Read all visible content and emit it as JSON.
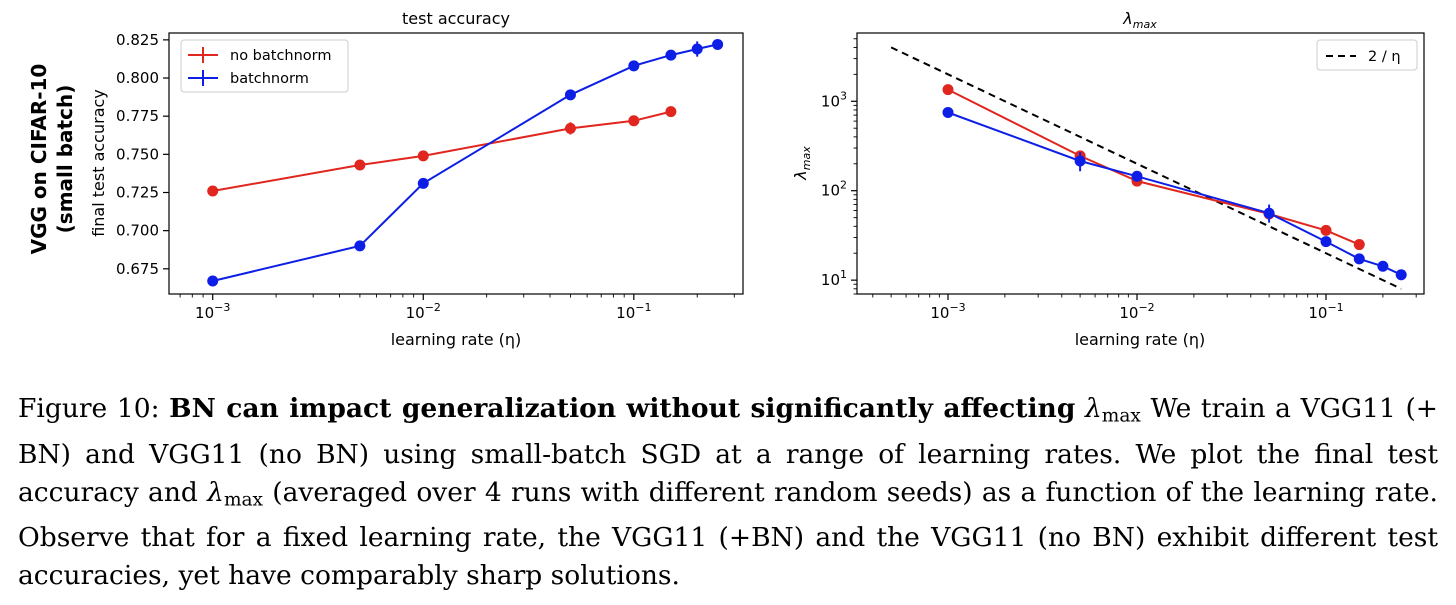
{
  "row_label": {
    "line1": "VGG on CIFAR-10",
    "line2": "(small batch)"
  },
  "chart_data": [
    {
      "type": "line",
      "title": "test accuracy",
      "xlabel": "learning rate (η)",
      "ylabel": "final test accuracy",
      "xscale": "log",
      "yscale": "linear",
      "xlim": [
        0.00062,
        0.33
      ],
      "ylim": [
        0.6585,
        0.8295
      ],
      "xticks": [
        {
          "value": 0.001,
          "base": "10",
          "exp": "−3"
        },
        {
          "value": 0.01,
          "base": "10",
          "exp": "−2"
        },
        {
          "value": 0.1,
          "base": "10",
          "exp": "−1"
        }
      ],
      "yticks": [
        {
          "value": 0.675,
          "label": "0.675"
        },
        {
          "value": 0.7,
          "label": "0.700"
        },
        {
          "value": 0.725,
          "label": "0.725"
        },
        {
          "value": 0.75,
          "label": "0.750"
        },
        {
          "value": 0.775,
          "label": "0.775"
        },
        {
          "value": 0.8,
          "label": "0.800"
        },
        {
          "value": 0.825,
          "label": "0.825"
        }
      ],
      "grid": false,
      "legend_position": "top-left",
      "series": [
        {
          "name": "no batchnorm",
          "color": "#e0261e",
          "x": [
            0.001,
            0.005,
            0.01,
            0.05,
            0.1,
            0.15
          ],
          "y": [
            0.726,
            0.743,
            0.749,
            0.767,
            0.772,
            0.778
          ],
          "err": [
            0.0015,
            0.002,
            0.0015,
            0.004,
            0.003,
            0.0015
          ]
        },
        {
          "name": "batchnorm",
          "color": "#0d1fe6",
          "x": [
            0.001,
            0.005,
            0.01,
            0.05,
            0.1,
            0.15,
            0.2,
            0.25
          ],
          "y": [
            0.667,
            0.69,
            0.731,
            0.789,
            0.808,
            0.815,
            0.819,
            0.822
          ],
          "err": [
            0.003,
            0.003,
            0.0015,
            0.0015,
            0.0015,
            0.002,
            0.005,
            0.0015
          ]
        }
      ]
    },
    {
      "type": "line",
      "title": "λmax",
      "xlabel": "learning rate (η)",
      "ylabel": "λmax",
      "xscale": "log",
      "yscale": "log",
      "xlim": [
        0.00033,
        0.33
      ],
      "ylim": [
        7,
        5800
      ],
      "xticks": [
        {
          "value": 0.001,
          "base": "10",
          "exp": "−3"
        },
        {
          "value": 0.01,
          "base": "10",
          "exp": "−2"
        },
        {
          "value": 0.1,
          "base": "10",
          "exp": "−1"
        }
      ],
      "yticks": [
        {
          "value": 10,
          "base": "10",
          "exp": "1"
        },
        {
          "value": 100,
          "base": "10",
          "exp": "2"
        },
        {
          "value": 1000,
          "base": "10",
          "exp": "3"
        }
      ],
      "grid": false,
      "legend_position": "top-right",
      "series": [
        {
          "name": "2 / η",
          "color": "#000000",
          "style": "dashed",
          "x": [
            0.0005,
            0.25
          ],
          "y": [
            4000,
            8
          ]
        },
        {
          "name": "",
          "color": "#e0261e",
          "x": [
            0.001,
            0.005,
            0.01,
            0.05,
            0.1,
            0.15
          ],
          "y": [
            1350,
            245,
            128,
            55,
            36,
            25
          ],
          "err_lo": [
            1250,
            225,
            120,
            48,
            34,
            23
          ],
          "err_hi": [
            1450,
            265,
            136,
            62,
            38,
            27
          ]
        },
        {
          "name": "",
          "color": "#0d1fe6",
          "x": [
            0.001,
            0.005,
            0.01,
            0.05,
            0.1,
            0.15,
            0.2,
            0.25
          ],
          "y": [
            750,
            215,
            145,
            56,
            27,
            17.3,
            14.3,
            11.5
          ],
          "err_lo": [
            720,
            165,
            138,
            44,
            25,
            16.3,
            13.5,
            10
          ],
          "err_hi": [
            780,
            270,
            152,
            70,
            29,
            18.3,
            15.1,
            13
          ]
        }
      ]
    }
  ],
  "caption": {
    "label": "Figure 10:",
    "bold": "BN can impact generalization without significantly affecting",
    "lambda": "λ",
    "lambda_sub": "max",
    "line1_rest": "We train a",
    "line2": "VGG11 (+ BN) and VGG11 (no BN) using small-batch SGD at a range of learning rates. We plot",
    "line3_pre": "the final test accuracy and",
    "line3_post": "(averaged over 4 runs with different random seeds) as a function of",
    "line4": "the learning rate. Observe that for a fixed learning rate, the VGG11 (+BN) and the VGG11 (no",
    "line5": "BN) exhibit different test accuracies, yet have comparably sharp solutions."
  }
}
